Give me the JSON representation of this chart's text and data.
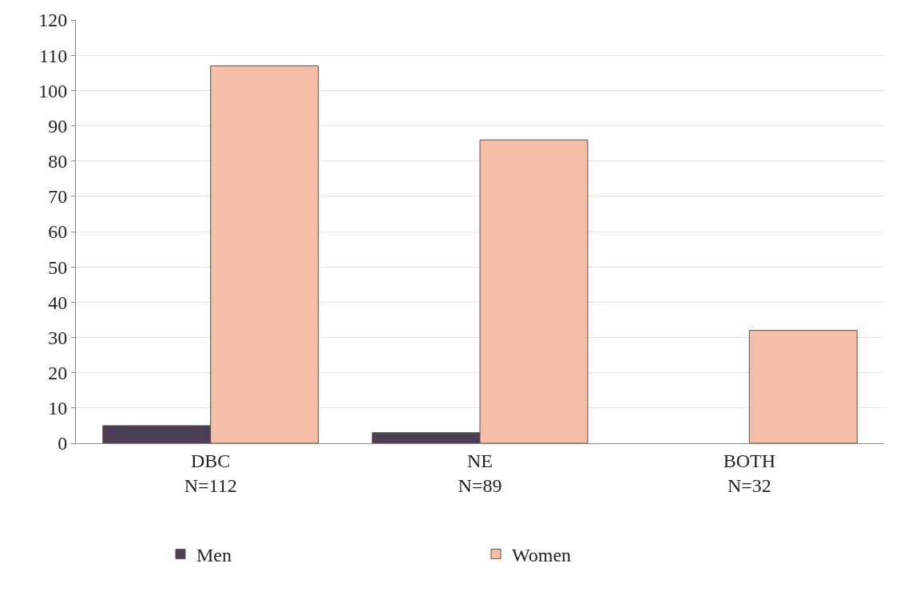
{
  "chart_data": {
    "type": "bar",
    "categories": [
      "DBC\nN=112",
      "NE\nN=89",
      "BOTH\nN=32"
    ],
    "series": [
      {
        "name": "Men",
        "color": "#4b3f58",
        "values": [
          5,
          3,
          0
        ]
      },
      {
        "name": "Women",
        "color": "#f4bfa6",
        "values": [
          107,
          86,
          32
        ]
      }
    ],
    "ylim": [
      0,
      120
    ],
    "yticks": [
      0,
      10,
      20,
      30,
      40,
      50,
      60,
      70,
      80,
      90,
      100,
      110,
      120
    ],
    "grid": "y",
    "legend": "bottom"
  }
}
